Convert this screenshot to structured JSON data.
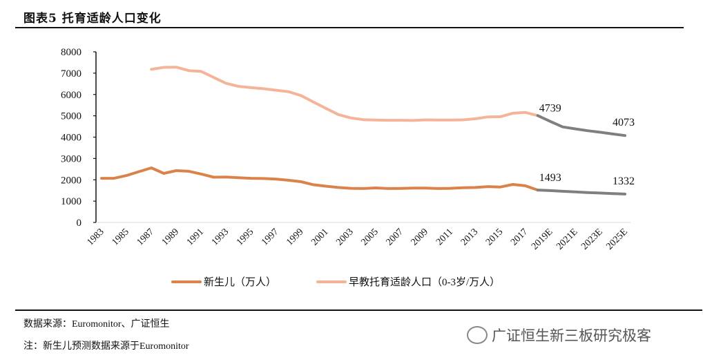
{
  "title": "图表5 托育适龄人口变化",
  "source": "数据来源：Euromonitor、广证恒生",
  "note": "注：新生儿预测数据来源于Euromonitor",
  "watermark": "广证恒生新三板研究极客",
  "colors": {
    "newborn": "#D9834A",
    "population": "#F5B49A",
    "forecast": "#7F7F7F"
  },
  "chart_data": {
    "type": "line",
    "title": "",
    "xlabel": "",
    "ylabel": "",
    "ylim": [
      0,
      8000
    ],
    "yticks": [
      "0",
      "1000",
      "2000",
      "3000",
      "4000",
      "5000",
      "6000",
      "7000",
      "8000"
    ],
    "xticks": [
      "1983",
      "1985",
      "1987",
      "1989",
      "1991",
      "1993",
      "1995",
      "1997",
      "1999",
      "2001",
      "2003",
      "2005",
      "2007",
      "2009",
      "2011",
      "2013",
      "2015",
      "2017",
      "2019E",
      "2021E",
      "2023E",
      "2025E"
    ],
    "grid": false,
    "legend": "bottom",
    "x": [
      1983,
      1984,
      1985,
      1986,
      1987,
      1988,
      1989,
      1990,
      1991,
      1992,
      1993,
      1994,
      1995,
      1996,
      1997,
      1998,
      1999,
      2000,
      2001,
      2002,
      2003,
      2004,
      2005,
      2006,
      2007,
      2008,
      2009,
      2010,
      2011,
      2012,
      2013,
      2014,
      2015,
      2016,
      2017,
      2018,
      2019,
      2020,
      2021,
      2022,
      2023,
      2024,
      2025
    ],
    "series": [
      {
        "name": "新生儿（万人）",
        "values": [
          2070,
          2070,
          2200,
          2380,
          2560,
          2300,
          2430,
          2400,
          2270,
          2120,
          2130,
          2100,
          2070,
          2060,
          2030,
          1980,
          1910,
          1770,
          1700,
          1640,
          1600,
          1590,
          1620,
          1590,
          1595,
          1610,
          1610,
          1590,
          1600,
          1630,
          1640,
          1680,
          1660,
          1780,
          1720,
          1520,
          null,
          null,
          null,
          null,
          null,
          null,
          null
        ]
      },
      {
        "name": "早教托育适龄人口（0-3岁/万人）",
        "values": [
          null,
          null,
          null,
          null,
          7180,
          7270,
          7280,
          7120,
          7080,
          6800,
          6520,
          6380,
          6320,
          6270,
          6200,
          6130,
          5950,
          5650,
          5350,
          5060,
          4900,
          4820,
          4800,
          4790,
          4790,
          4780,
          4810,
          4800,
          4800,
          4810,
          4860,
          4950,
          4960,
          5120,
          5160,
          5010,
          null,
          null,
          null,
          null,
          null,
          null,
          null
        ]
      },
      {
        "values": [
          null,
          null,
          null,
          null,
          null,
          null,
          null,
          null,
          null,
          null,
          null,
          null,
          null,
          null,
          null,
          null,
          null,
          null,
          null,
          null,
          null,
          null,
          null,
          null,
          null,
          null,
          null,
          null,
          null,
          null,
          null,
          null,
          null,
          null,
          null,
          1520,
          1493,
          1460,
          1430,
          1400,
          1380,
          1355,
          1332
        ]
      },
      {
        "values": [
          null,
          null,
          null,
          null,
          null,
          null,
          null,
          null,
          null,
          null,
          null,
          null,
          null,
          null,
          null,
          null,
          null,
          null,
          null,
          null,
          null,
          null,
          null,
          null,
          null,
          null,
          null,
          null,
          null,
          null,
          null,
          null,
          null,
          null,
          null,
          5010,
          4739,
          4480,
          4390,
          4300,
          4230,
          4150,
          4073
        ]
      }
    ],
    "data_labels": [
      {
        "series": 3,
        "x": 2019,
        "text": "4739"
      },
      {
        "series": 3,
        "x": 2025,
        "text": "4073"
      },
      {
        "series": 2,
        "x": 2019,
        "text": "1493"
      },
      {
        "series": 2,
        "x": 2025,
        "text": "1332"
      }
    ]
  }
}
